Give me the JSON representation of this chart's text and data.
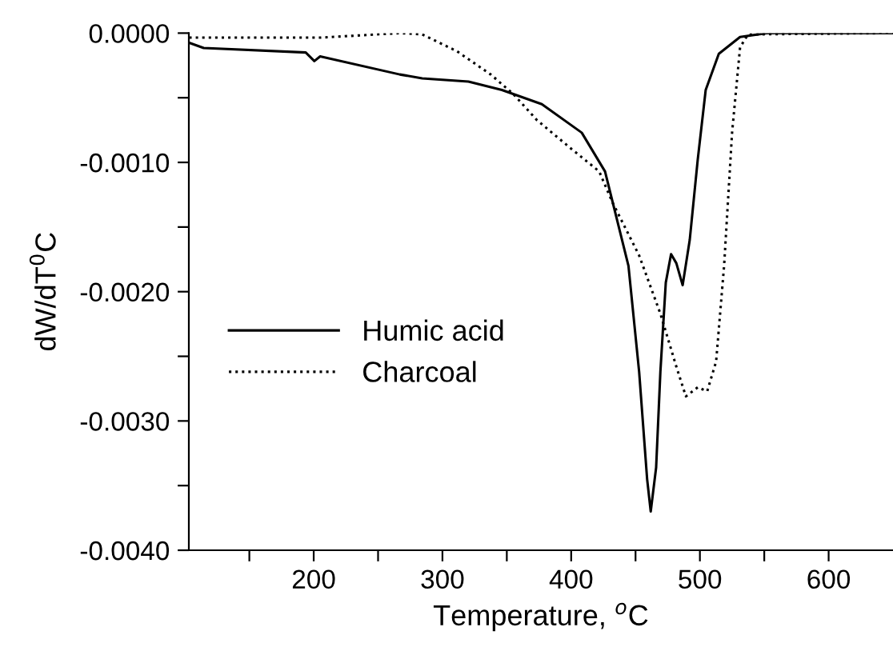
{
  "chart_data": {
    "type": "line",
    "xlabel": "Temperature, $^{o}$C",
    "ylabel": "dW/dT$^{0}$C",
    "xlim": [
      103,
      650
    ],
    "ylim": [
      -0.004,
      0
    ],
    "xticks": [
      {
        "value": 150,
        "label": null
      },
      200,
      {
        "value": 250,
        "label": null
      },
      300,
      {
        "value": 350,
        "label": null
      },
      400,
      {
        "value": 450,
        "label": null
      },
      500,
      {
        "value": 550,
        "label": null
      },
      600
    ],
    "yticks": [
      {
        "value": -0.004,
        "label": "-0.0040"
      },
      {
        "value": -0.0035,
        "label": null
      },
      {
        "value": -0.003,
        "label": "-0.0030"
      },
      {
        "value": -0.0025,
        "label": null
      },
      {
        "value": -0.002,
        "label": "-0.0020"
      },
      {
        "value": -0.0015,
        "label": null
      },
      {
        "value": -0.001,
        "label": "-0.0010"
      },
      {
        "value": -0.0005,
        "label": null
      },
      {
        "value": 0,
        "label": "0.0000"
      }
    ],
    "grid": false,
    "legend": "left",
    "marker": "none",
    "series": [
      {
        "name": "Humic acid",
        "color": "#000000",
        "line_style": "solid",
        "x": [
          103.3,
          114.5,
          193.8,
          200.5,
          205,
          266.9,
          284.3,
          320.2,
          346.2,
          377.2,
          408.2,
          426.3,
          444.5,
          452.8,
          459,
          461.8,
          466,
          469.3,
          473.5,
          477.6,
          481.7,
          486.6,
          492.1,
          498.3,
          504.5,
          514.7,
          531.2,
          551.9,
          650
        ],
        "values": [
          -7.5e-05,
          -0.000115,
          -0.00015,
          -0.000216,
          -0.00018,
          -0.00032,
          -0.00035,
          -0.000375,
          -0.00044,
          -0.00055,
          -0.00077,
          -0.00107,
          -0.0018,
          -0.00262,
          -0.00345,
          -0.0037,
          -0.00336,
          -0.00262,
          -0.00193,
          -0.00171,
          -0.00178,
          -0.00195,
          -0.0016,
          -0.00098,
          -0.00044,
          -0.00016,
          -3e-05,
          0,
          0
        ]
      },
      {
        "name": "Charcoal",
        "color": "#000000",
        "line_style": "dotted",
        "x": [
          103.3,
          205,
          266.9,
          284.3,
          311.2,
          337.5,
          354.9,
          373.1,
          399.5,
          421.8,
          432.1,
          452.8,
          469.3,
          481.7,
          489.1,
          498.3,
          505.7,
          512.6,
          518.8,
          525,
          531.2,
          537.4,
          650
        ],
        "values": [
          -3.5e-05,
          -3.5e-05,
          0,
          -1e-05,
          -0.00014,
          -0.00032,
          -0.00047,
          -0.00067,
          -0.00089,
          -0.00107,
          -0.00131,
          -0.00172,
          -0.00217,
          -0.00258,
          -0.00281,
          -0.00274,
          -0.00277,
          -0.00254,
          -0.0018,
          -0.00077,
          -0.00011,
          -1e-05,
          0
        ]
      }
    ]
  }
}
